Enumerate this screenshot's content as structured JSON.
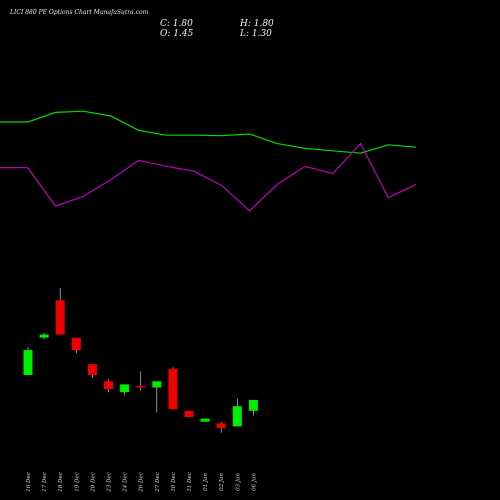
{
  "title": "LICI 880 PE Options Chart MunafaSutra.com",
  "ohlc": {
    "close": "C: 1.80",
    "open": "O: 1.45",
    "high": "H: 1.80",
    "low": "L: 1.30"
  },
  "colors": {
    "background": "#000000",
    "up": "#00ee00",
    "down": "#ee0000",
    "green_line": "#00dd00",
    "magenta_line": "#bb00bb",
    "text": "#e8e8e8"
  },
  "chart_data": [
    {
      "type": "line",
      "series": [
        {
          "color": "#00dd00",
          "values": [
            65.0,
            65.0,
            69.0,
            69.5,
            67.5,
            61.5,
            59.5,
            59.5,
            59.3,
            60.0,
            56.0,
            54.0,
            53.0,
            52.0,
            55.5,
            54.5
          ]
        },
        {
          "color": "#bb00bb",
          "values": [
            46.0,
            46.0,
            30.0,
            34.0,
            41.0,
            49.0,
            46.5,
            44.5,
            38.5,
            28.0,
            39.0,
            46.5,
            43.5,
            56.0,
            33.5,
            39.0
          ]
        }
      ],
      "ylim": [
        0,
        100
      ]
    },
    {
      "type": "candlestick",
      "categories": [
        "16 Dec",
        "17 Dec",
        "18 Dec",
        "19 Dec",
        "20 Dec",
        "23 Dec",
        "24 Dec",
        "26 Dec",
        "27 Dec",
        "30 Dec",
        "31 Dec",
        "01 Jan",
        "02 Jan",
        "03 Jan",
        "06 Jan"
      ],
      "candles": [
        {
          "open": 2.6,
          "high": 3.5,
          "low": 2.6,
          "close": 3.4
        },
        {
          "open": 3.8,
          "high": 3.95,
          "low": 3.75,
          "close": 3.9
        },
        {
          "open": 5.0,
          "high": 5.4,
          "low": 3.9,
          "close": 3.9
        },
        {
          "open": 3.8,
          "high": 3.8,
          "low": 3.3,
          "close": 3.4
        },
        {
          "open": 2.95,
          "high": 2.95,
          "low": 2.5,
          "close": 2.6
        },
        {
          "open": 2.4,
          "high": 2.45,
          "low": 2.05,
          "close": 2.15
        },
        {
          "open": 2.05,
          "high": 2.3,
          "low": 1.95,
          "close": 2.3
        },
        {
          "open": 2.25,
          "high": 2.72,
          "low": 2.1,
          "close": 2.2
        },
        {
          "open": 2.2,
          "high": 2.4,
          "low": 1.4,
          "close": 2.4
        },
        {
          "open": 2.8,
          "high": 2.85,
          "low": 1.5,
          "close": 1.5
        },
        {
          "open": 1.45,
          "high": 1.45,
          "low": 1.25,
          "close": 1.25
        },
        {
          "open": 1.1,
          "high": 1.2,
          "low": 1.1,
          "close": 1.2
        },
        {
          "open": 1.05,
          "high": 1.1,
          "low": 0.75,
          "close": 0.9
        },
        {
          "open": 0.95,
          "high": 1.85,
          "low": 0.95,
          "close": 1.6
        },
        {
          "open": 1.45,
          "high": 1.8,
          "low": 1.3,
          "close": 1.8
        }
      ],
      "ylim": [
        0,
        7
      ]
    }
  ]
}
